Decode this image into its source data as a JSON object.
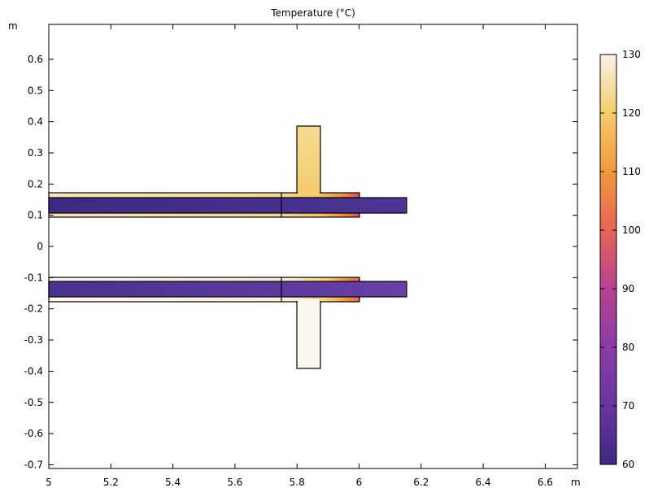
{
  "chart_data": {
    "type": "heatmap",
    "title": "Temperature (°C)",
    "xunit": "m",
    "yunit": "m",
    "xlim": [
      5.0,
      6.7
    ],
    "ylim": [
      -0.71,
      0.71
    ],
    "xticks": [
      5,
      5.2,
      5.4,
      5.6,
      5.8,
      6,
      6.2,
      6.4,
      6.6
    ],
    "yticks": [
      0.6,
      0.5,
      0.4,
      0.3,
      0.2,
      0.1,
      0,
      -0.1,
      -0.2,
      -0.3,
      -0.4,
      -0.5,
      -0.6,
      -0.7
    ],
    "colorbar": {
      "range": [
        60,
        130
      ],
      "ticks": [
        130,
        120,
        110,
        100,
        90,
        80,
        70,
        60
      ],
      "colormap": [
        "#f9f1e7",
        "#f5cd6d",
        "#f1973b",
        "#e56458",
        "#b8418f",
        "#8a3da6",
        "#6a33a0",
        "#3b2a80"
      ]
    },
    "domains": [
      {
        "name": "upper-shell",
        "x": [
          5.0,
          6.0
        ],
        "y": [
          0.095,
          0.175
        ],
        "temp": 122
      },
      {
        "name": "upper-inlet",
        "x": [
          5.8,
          5.875
        ],
        "y": [
          0.175,
          0.39
        ],
        "temp": 123
      },
      {
        "name": "upper-tube",
        "x": [
          5.0,
          6.15
        ],
        "y": [
          0.11,
          0.16
        ],
        "temp": 64
      },
      {
        "name": "lower-shell",
        "x": [
          5.0,
          6.0
        ],
        "y": [
          -0.175,
          -0.095
        ],
        "temp": 128
      },
      {
        "name": "lower-outlet",
        "x": [
          5.8,
          5.875
        ],
        "y": [
          -0.39,
          -0.175
        ],
        "temp": 129
      },
      {
        "name": "lower-tube",
        "x": [
          5.0,
          6.15
        ],
        "y": [
          -0.16,
          -0.11
        ],
        "temp": 68
      }
    ],
    "partition_x": 5.75
  }
}
